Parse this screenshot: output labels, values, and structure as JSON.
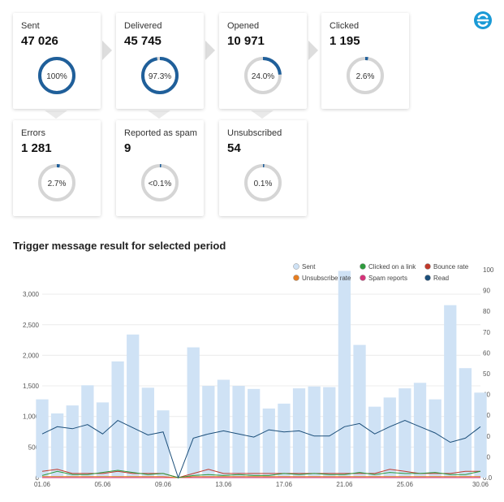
{
  "colors": {
    "ring_fill": "#1f5f9a",
    "ring_track": "#d5d5d5",
    "bar": "#cfe2f5",
    "read_line": "#1c4f7a",
    "click_line": "#2e9a3d",
    "bounce_line": "#c0392b",
    "unsub_line": "#e67e22",
    "spam_line": "#d6337a"
  },
  "logo": {
    "icon": "e-brand-icon"
  },
  "stats": [
    {
      "label": "Sent",
      "value": "47 026",
      "pct_text": "100%",
      "pct": 100
    },
    {
      "label": "Delivered",
      "value": "45 745",
      "pct_text": "97.3%",
      "pct": 97.3
    },
    {
      "label": "Opened",
      "value": "10 971",
      "pct_text": "24.0%",
      "pct": 24.0
    },
    {
      "label": "Clicked",
      "value": "1 195",
      "pct_text": "2.6%",
      "pct": 2.6
    },
    {
      "label": "Errors",
      "value": "1 281",
      "pct_text": "2.7%",
      "pct": 2.7
    },
    {
      "label": "Reported as spam",
      "value": "9",
      "pct_text": "<0.1%",
      "pct": 0.1
    },
    {
      "label": "Unsubscribed",
      "value": "54",
      "pct_text": "0.1%",
      "pct": 0.1
    }
  ],
  "chart_title": "Trigger message result for selected period",
  "chart_data": {
    "type": "bar",
    "title": "Trigger message result for selected period",
    "legend": [
      {
        "name": "Sent",
        "color": "#cfe2f5"
      },
      {
        "name": "Clicked on a link",
        "color": "#2e9a3d"
      },
      {
        "name": "Bounce rate",
        "color": "#c0392b"
      },
      {
        "name": "Unsubscribe rate",
        "color": "#e67e22"
      },
      {
        "name": "Spam reports",
        "color": "#d6337a"
      },
      {
        "name": "Read",
        "color": "#1c4f7a"
      }
    ],
    "x_ticks": [
      "01.06",
      "05.06",
      "09.06",
      "13.06",
      "17.06",
      "21.06",
      "25.06",
      "30.06"
    ],
    "y_left_ticks": [
      "0",
      "500",
      "1,000",
      "1,500",
      "2,000",
      "2,500",
      "3,000"
    ],
    "y_right_ticks": [
      "0.0",
      "10",
      "20",
      "30",
      "40",
      "50",
      "60",
      "70",
      "80",
      "90",
      "100"
    ],
    "ylim_left": [
      0,
      3400
    ],
    "ylim_right": [
      0,
      100
    ],
    "sent": [
      1280,
      1050,
      1180,
      1510,
      1230,
      1900,
      2340,
      1470,
      1100,
      0,
      2130,
      1500,
      1600,
      1500,
      1450,
      1130,
      1210,
      1460,
      1490,
      1480,
      3380,
      2170,
      1160,
      1310,
      1460,
      1550,
      1280,
      2820,
      1790,
      1390
    ],
    "read": [
      21,
      24.5,
      23.5,
      25.5,
      21,
      27.5,
      24,
      20.5,
      22,
      0,
      19,
      21,
      22.5,
      21,
      19.5,
      23,
      22,
      22.5,
      20,
      20,
      24.5,
      26,
      21,
      24.5,
      27.5,
      24.5,
      21.5,
      17,
      19,
      24.5
    ],
    "clicked": [
      1,
      3,
      1.5,
      1.5,
      2.5,
      3.5,
      2.5,
      1.5,
      2,
      0,
      1,
      1.5,
      1,
      1.5,
      1,
      1,
      2,
      1.5,
      2,
      1.5,
      1.5,
      2.5,
      1.5,
      2.5,
      2,
      2,
      2.5,
      1.5,
      1.5,
      3
    ],
    "bounce": [
      3,
      4,
      2,
      2,
      2,
      3,
      2,
      2,
      2,
      0,
      2,
      4,
      2,
      2,
      2,
      2,
      2,
      2,
      2,
      2,
      2,
      2,
      2,
      4,
      3,
      2,
      2,
      2,
      3,
      3
    ],
    "unsub": [
      0.5,
      0.5,
      0.5,
      0.5,
      0.5,
      0.5,
      0.5,
      0.5,
      0.5,
      0,
      0.5,
      0.5,
      0.5,
      0.5,
      0.5,
      0.5,
      0.5,
      0.5,
      0.5,
      0.5,
      0.5,
      0.5,
      0.5,
      0.5,
      0.5,
      0.5,
      0.5,
      0.5,
      0.5,
      0.5
    ],
    "spam": [
      0,
      0,
      0,
      0,
      0,
      0,
      0,
      0,
      0,
      0,
      0,
      0,
      0,
      0,
      0,
      0,
      0,
      0,
      0,
      0,
      0,
      0,
      0,
      0,
      0,
      0,
      0,
      0,
      0,
      0
    ],
    "grid": true,
    "legend_position": "top-right"
  }
}
